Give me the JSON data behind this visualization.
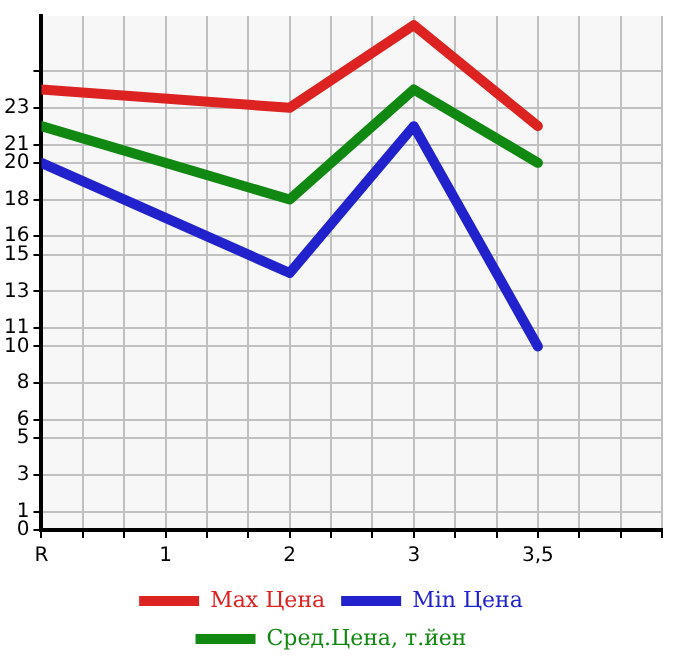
{
  "chart_data": {
    "type": "line",
    "categories": [
      "R",
      null,
      null,
      "1",
      null,
      null,
      "2",
      null,
      null,
      "3",
      null,
      null,
      "3,5",
      null,
      null,
      null
    ],
    "series": [
      {
        "name": "Max Цена",
        "color": "#dd2222",
        "values": [
          24,
          null,
          null,
          null,
          null,
          null,
          23,
          null,
          null,
          27.5,
          null,
          null,
          22,
          null,
          null,
          null
        ]
      },
      {
        "name": "Min Цена",
        "color": "#2222cc",
        "values": [
          20,
          null,
          null,
          null,
          null,
          null,
          14,
          null,
          null,
          22,
          null,
          null,
          10,
          null,
          null,
          null
        ]
      },
      {
        "name": "Сред.Цена, т.йен",
        "color": "#118811",
        "values": [
          22,
          null,
          null,
          null,
          null,
          null,
          18,
          null,
          null,
          24,
          null,
          null,
          20,
          null,
          null,
          null
        ]
      }
    ],
    "ylim": [
      0,
      28
    ],
    "yticks": [
      0,
      1,
      3,
      5,
      6,
      8,
      10,
      11,
      13,
      15,
      16,
      18,
      20,
      21,
      23,
      {
        "value": 25,
        "label": null
      }
    ],
    "grid": true,
    "legend": "bottom",
    "marker": "none",
    "line_style": "solid"
  }
}
